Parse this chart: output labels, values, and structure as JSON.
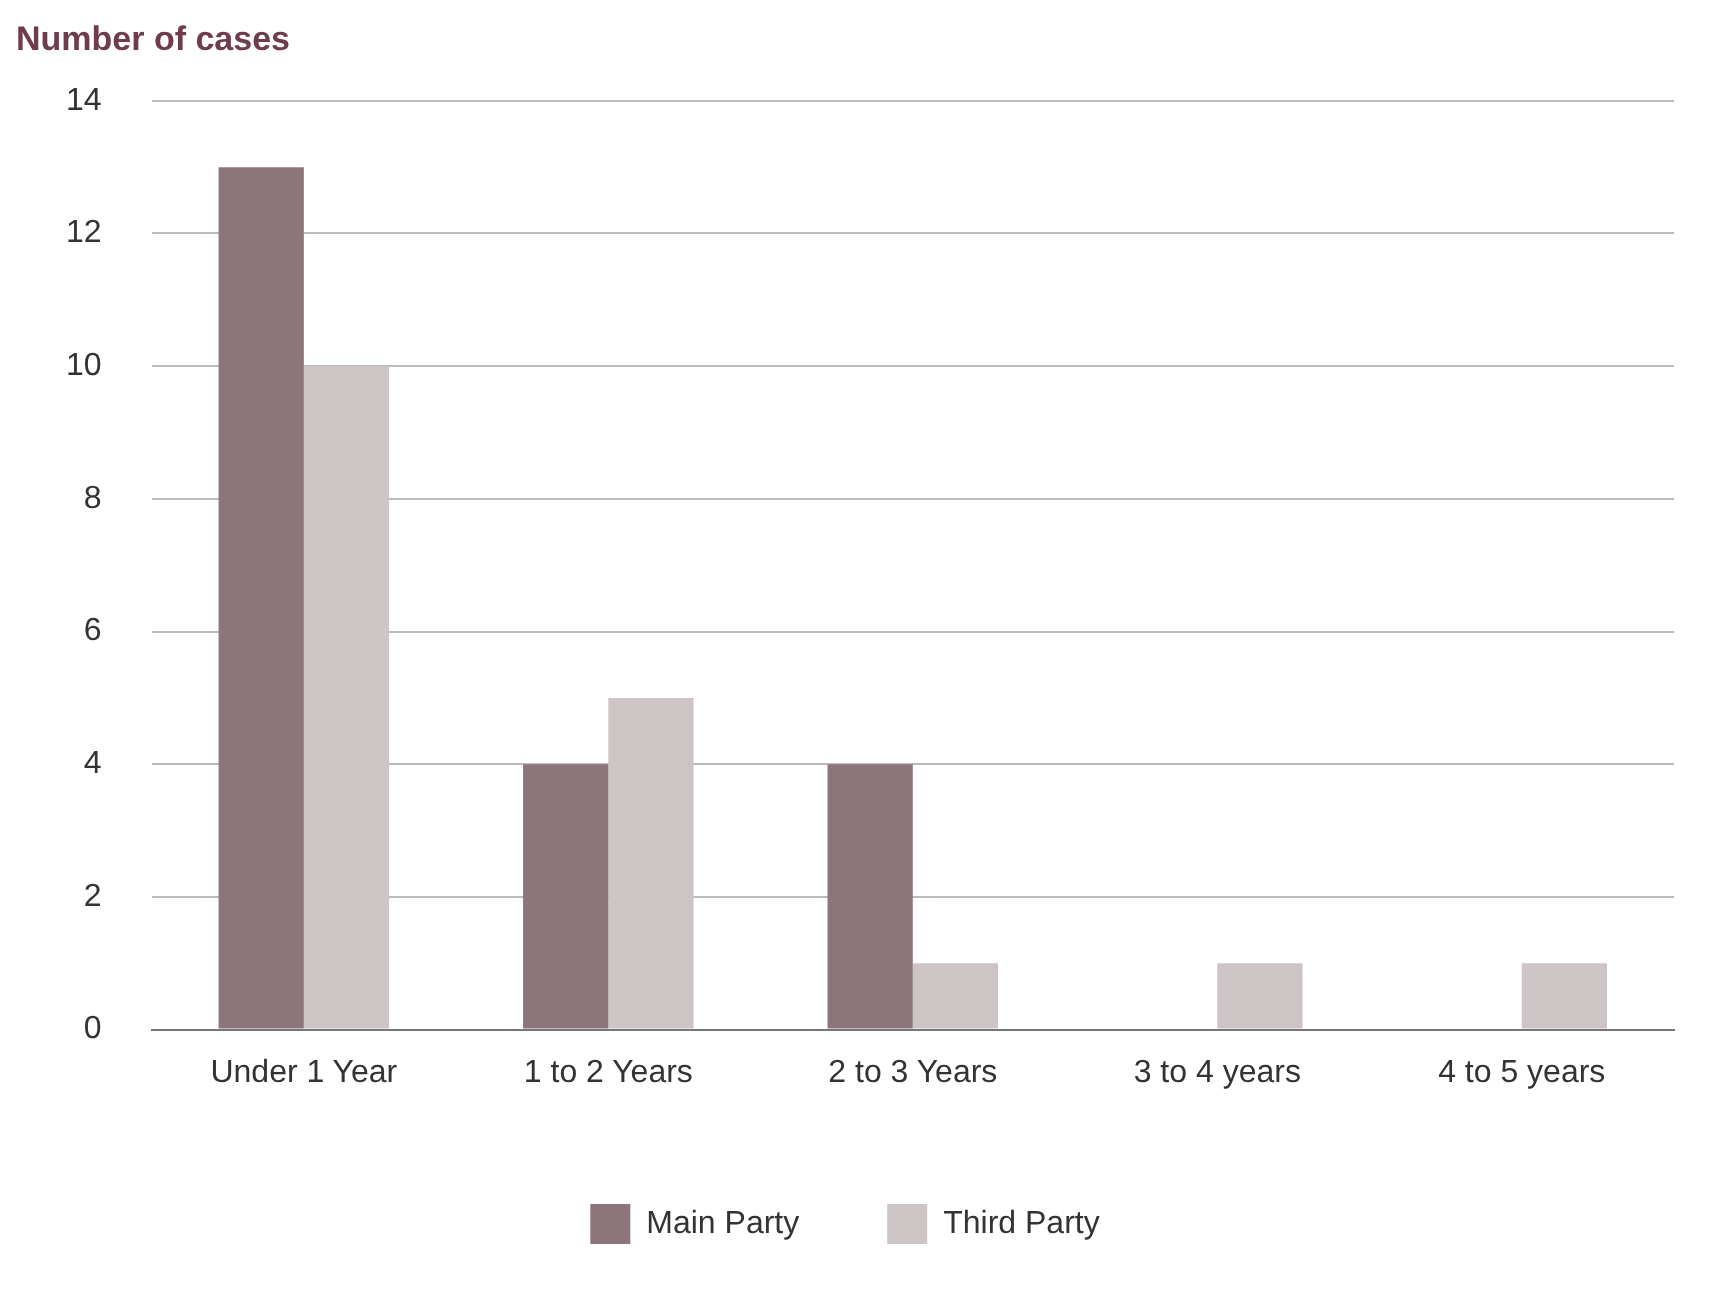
{
  "chart_data": {
    "type": "bar",
    "title": "Number of cases",
    "categories": [
      "Under 1 Year",
      "1 to 2 Years",
      "2 to 3 Years",
      "3 to 4 years",
      "4 to 5 years"
    ],
    "series": [
      {
        "name": "Main Party",
        "color": "#8c767b",
        "values": [
          13,
          4,
          4,
          0,
          0
        ]
      },
      {
        "name": "Third Party",
        "color": "#cdc4c5",
        "values": [
          10,
          5,
          1,
          1,
          1
        ]
      }
    ],
    "ylim": [
      0,
      14
    ],
    "yticks": [
      0,
      2,
      4,
      6,
      8,
      10,
      12,
      14
    ],
    "grid": "y",
    "legend": "bottom"
  }
}
